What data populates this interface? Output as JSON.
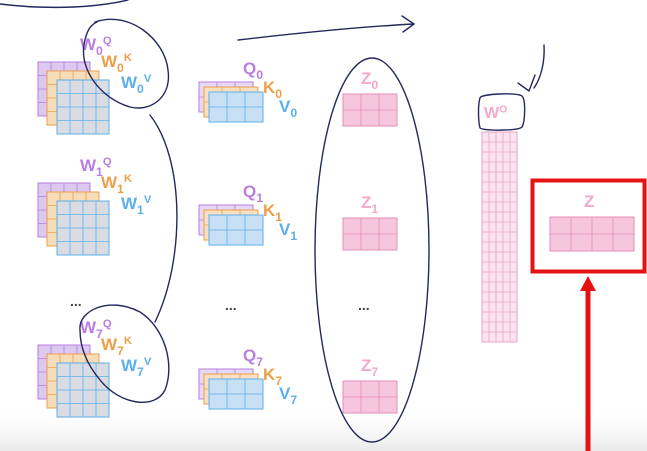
{
  "colors": {
    "purple": "#b97fe0",
    "orange": "#eba049",
    "blue": "#5cb0ea",
    "pink": "#f6bcd8",
    "zlabel": "#f3a8cc",
    "weight_purple_fill": "#ddc8ef",
    "weight_orange_fill": "#f5ddb8",
    "weight_gray_fill": "#d9dde3",
    "qkv_purple_fill": "#e7d8f6",
    "qkv_orange_fill": "#fae0c2",
    "qkv_blue_fill": "#c7e0f6",
    "z_fill": "#f6c6de",
    "highlight_red": "#e41212",
    "ink": "#23285e"
  },
  "weights": [
    {
      "wq": {
        "base": "W",
        "sub": "0",
        "sup": "Q"
      },
      "wk": {
        "base": "W",
        "sub": "0",
        "sup": "K"
      },
      "wv": {
        "base": "W",
        "sub": "0",
        "sup": "V"
      }
    },
    {
      "wq": {
        "base": "W",
        "sub": "1",
        "sup": "Q"
      },
      "wk": {
        "base": "W",
        "sub": "1",
        "sup": "K"
      },
      "wv": {
        "base": "W",
        "sub": "1",
        "sup": "V"
      }
    },
    {
      "wq": {
        "base": "W",
        "sub": "7",
        "sup": "Q"
      },
      "wk": {
        "base": "W",
        "sub": "7",
        "sup": "K"
      },
      "wv": {
        "base": "W",
        "sub": "7",
        "sup": "V"
      }
    }
  ],
  "qkv": [
    {
      "q": {
        "base": "Q",
        "sub": "0"
      },
      "k": {
        "base": "K",
        "sub": "0"
      },
      "v": {
        "base": "V",
        "sub": "0"
      }
    },
    {
      "q": {
        "base": "Q",
        "sub": "1"
      },
      "k": {
        "base": "K",
        "sub": "1"
      },
      "v": {
        "base": "V",
        "sub": "1"
      }
    },
    {
      "q": {
        "base": "Q",
        "sub": "7"
      },
      "k": {
        "base": "K",
        "sub": "7"
      },
      "v": {
        "base": "V",
        "sub": "7"
      }
    }
  ],
  "z_heads": [
    {
      "base": "Z",
      "sub": "0"
    },
    {
      "base": "Z",
      "sub": "1"
    },
    {
      "base": "Z",
      "sub": "7"
    }
  ],
  "ellipsis": "...",
  "wo": {
    "base": "W",
    "sup": "O"
  },
  "z_final": "Z"
}
